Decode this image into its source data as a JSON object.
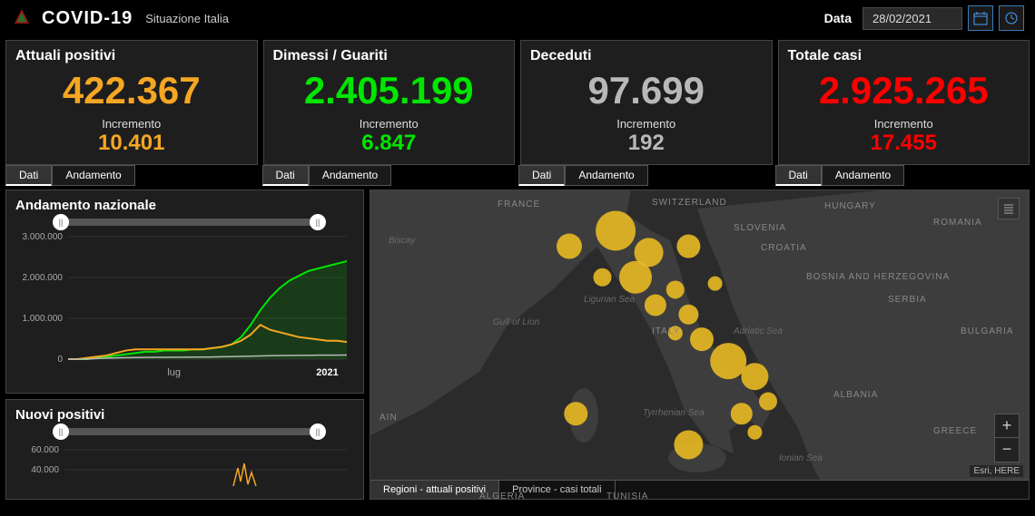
{
  "header": {
    "title": "COVID-19",
    "subtitle": "Situazione Italia",
    "date_label": "Data",
    "date_value": "28/02/2021"
  },
  "cards": [
    {
      "title": "Attuali positivi",
      "value": "422.367",
      "inc_label": "Incremento",
      "inc_value": "10.401",
      "color": "#f5a623"
    },
    {
      "title": "Dimessi / Guariti",
      "value": "2.405.199",
      "inc_label": "Incremento",
      "inc_value": "6.847",
      "color": "#00e600"
    },
    {
      "title": "Deceduti",
      "value": "97.699",
      "inc_label": "Incremento",
      "inc_value": "192",
      "color": "#b8b8b8"
    },
    {
      "title": "Totale casi",
      "value": "2.925.265",
      "inc_label": "Incremento",
      "inc_value": "17.455",
      "color": "#ff0000"
    }
  ],
  "card_tabs": {
    "dati": "Dati",
    "andamento": "Andamento"
  },
  "panels": {
    "national": {
      "title": "Andamento nazionale",
      "y_ticks": [
        "3.000.000",
        "2.000.000",
        "1.000.000",
        "0"
      ],
      "x_ticks": [
        "lug",
        "2021"
      ],
      "ylim": [
        0,
        3000000
      ],
      "series": {
        "positivi": {
          "color": "#f5a623",
          "points": [
            0,
            0,
            0.01,
            0.02,
            0.03,
            0.05,
            0.07,
            0.08,
            0.08,
            0.08,
            0.08,
            0.08,
            0.08,
            0.08,
            0.08,
            0.09,
            0.1,
            0.12,
            0.15,
            0.2,
            0.28,
            0.24,
            0.22,
            0.2,
            0.18,
            0.17,
            0.16,
            0.15,
            0.15,
            0.14
          ]
        },
        "guariti": {
          "color": "#00e600",
          "fill": "rgba(0,230,0,0.15)",
          "points": [
            0,
            0,
            0,
            0.01,
            0.02,
            0.03,
            0.04,
            0.05,
            0.06,
            0.06,
            0.07,
            0.07,
            0.07,
            0.08,
            0.08,
            0.09,
            0.1,
            0.12,
            0.18,
            0.28,
            0.4,
            0.5,
            0.58,
            0.64,
            0.68,
            0.72,
            0.74,
            0.76,
            0.78,
            0.8
          ]
        },
        "deceduti": {
          "color": "#b8b8b8",
          "points": [
            0,
            0,
            0,
            0.005,
            0.008,
            0.01,
            0.012,
            0.013,
            0.014,
            0.015,
            0.015,
            0.016,
            0.016,
            0.017,
            0.017,
            0.018,
            0.019,
            0.02,
            0.022,
            0.024,
            0.026,
            0.028,
            0.029,
            0.03,
            0.031,
            0.031,
            0.032,
            0.032,
            0.032,
            0.033
          ]
        }
      }
    },
    "nuovi": {
      "title": "Nuovi positivi",
      "y_ticks": [
        "60.000",
        "40.000"
      ],
      "color": "#f5a623"
    }
  },
  "map": {
    "countries": [
      "FRANCE",
      "SWITZERLAND",
      "SLOVENIA",
      "CROATIA",
      "HUNGARY",
      "ROMANIA",
      "BOSNIA AND HERZEGOVINA",
      "SERBIA",
      "BULGARIA",
      "ALBANIA",
      "GREECE",
      "ITALY",
      "ALGERIA",
      "TUNISIA",
      "AIN"
    ],
    "seas": [
      "Ligurian Sea",
      "Gulf of Lion",
      "Tyrrhenian Sea",
      "Adriatic Sea",
      "Ionian Sea",
      "Biscay"
    ],
    "bubbles": [
      {
        "x": 0.3,
        "y": 0.18,
        "r": 14
      },
      {
        "x": 0.37,
        "y": 0.13,
        "r": 22
      },
      {
        "x": 0.42,
        "y": 0.2,
        "r": 16
      },
      {
        "x": 0.48,
        "y": 0.18,
        "r": 13
      },
      {
        "x": 0.4,
        "y": 0.28,
        "r": 18
      },
      {
        "x": 0.35,
        "y": 0.28,
        "r": 10
      },
      {
        "x": 0.43,
        "y": 0.37,
        "r": 12
      },
      {
        "x": 0.46,
        "y": 0.32,
        "r": 10
      },
      {
        "x": 0.48,
        "y": 0.4,
        "r": 11
      },
      {
        "x": 0.5,
        "y": 0.48,
        "r": 13
      },
      {
        "x": 0.54,
        "y": 0.55,
        "r": 20
      },
      {
        "x": 0.58,
        "y": 0.6,
        "r": 15
      },
      {
        "x": 0.6,
        "y": 0.68,
        "r": 10
      },
      {
        "x": 0.56,
        "y": 0.72,
        "r": 12
      },
      {
        "x": 0.48,
        "y": 0.82,
        "r": 16
      },
      {
        "x": 0.31,
        "y": 0.72,
        "r": 13
      },
      {
        "x": 0.52,
        "y": 0.3,
        "r": 8
      },
      {
        "x": 0.46,
        "y": 0.46,
        "r": 8
      },
      {
        "x": 0.58,
        "y": 0.78,
        "r": 8
      }
    ],
    "bubble_color": "#e8b923",
    "land_color": "#3d3d3d",
    "sea_color": "#2b2b2b",
    "attribution": "Esri, HERE",
    "tabs": [
      "Regioni - attuali positivi",
      "Province - casi totali"
    ]
  }
}
